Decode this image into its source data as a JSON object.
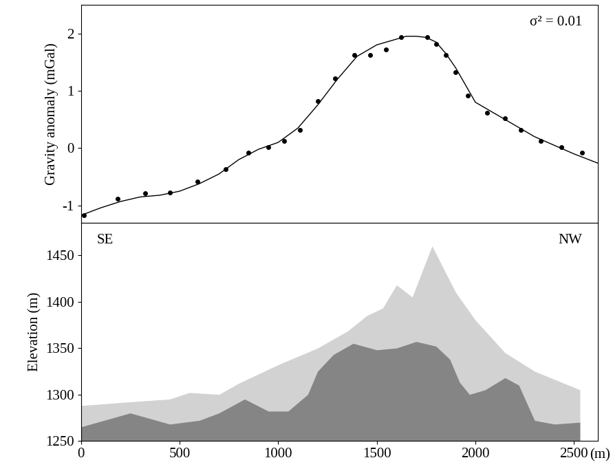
{
  "chart_data": [
    {
      "type": "line",
      "y_label": "Gravity anomaly (mGal)",
      "annotations": [
        "σ² = 0.01"
      ],
      "xlim": [
        0,
        2620
      ],
      "ylim": [
        -1.3,
        2.5
      ],
      "yticks": [
        -1,
        0,
        1,
        2
      ],
      "tick_labels": "y",
      "grid": false,
      "series": [
        {
          "type": "scatter",
          "color": "#000000",
          "marker": "o",
          "x": [
            15,
            185,
            325,
            450,
            590,
            735,
            850,
            950,
            1030,
            1110,
            1200,
            1290,
            1385,
            1465,
            1545,
            1625,
            1755,
            1800,
            1850,
            1900,
            1960,
            2060,
            2150,
            2230,
            2330,
            2435,
            2540
          ],
          "values": [
            -1.17,
            -0.88,
            -0.78,
            -0.77,
            -0.58,
            -0.37,
            -0.08,
            0.02,
            0.12,
            0.32,
            0.82,
            1.22,
            1.62,
            1.62,
            1.72,
            1.93,
            1.93,
            1.82,
            1.62,
            1.32,
            0.92,
            0.62,
            0.52,
            0.32,
            0.12,
            0.02,
            -0.08
          ]
        },
        {
          "type": "line",
          "color": "#000000",
          "line_style": "solid",
          "x": [
            0,
            100,
            200,
            300,
            400,
            500,
            600,
            700,
            800,
            900,
            1000,
            1100,
            1200,
            1300,
            1400,
            1500,
            1600,
            1650,
            1700,
            1750,
            1800,
            1850,
            1900,
            1950,
            2000,
            2100,
            2200,
            2300,
            2400,
            2500,
            2620
          ],
          "values": [
            -1.17,
            -1.04,
            -0.93,
            -0.85,
            -0.82,
            -0.75,
            -0.62,
            -0.45,
            -0.2,
            -0.02,
            0.1,
            0.35,
            0.75,
            1.2,
            1.6,
            1.8,
            1.9,
            1.95,
            1.95,
            1.93,
            1.85,
            1.65,
            1.4,
            1.1,
            0.8,
            0.6,
            0.4,
            0.2,
            0.05,
            -0.1,
            -0.26
          ]
        }
      ]
    },
    {
      "type": "area",
      "y_label": "Elevation (m)",
      "x_label": "(m)",
      "annotations": [
        "SE",
        "NW"
      ],
      "xlim": [
        0,
        2620
      ],
      "xticks": [
        0,
        500,
        1000,
        1500,
        2000,
        2500
      ],
      "ylim": [
        1250,
        1485
      ],
      "yticks": [
        1250,
        1300,
        1350,
        1400,
        1450
      ],
      "grid": false,
      "series": [
        {
          "color": "#d2d2d2",
          "x": [
            0,
            250,
            450,
            550,
            700,
            800,
            1000,
            1200,
            1350,
            1450,
            1530,
            1600,
            1680,
            1780,
            1900,
            2000,
            2150,
            2300,
            2530
          ],
          "values": [
            1288,
            1292,
            1295,
            1302,
            1300,
            1312,
            1332,
            1350,
            1368,
            1385,
            1393,
            1418,
            1405,
            1460,
            1410,
            1380,
            1345,
            1325,
            1305
          ]
        },
        {
          "color": "#858585",
          "x": [
            0,
            250,
            450,
            600,
            700,
            830,
            950,
            1050,
            1150,
            1200,
            1280,
            1380,
            1500,
            1600,
            1700,
            1800,
            1870,
            1920,
            1970,
            2050,
            2150,
            2220,
            2300,
            2400,
            2530
          ],
          "values": [
            1265,
            1280,
            1268,
            1272,
            1280,
            1295,
            1282,
            1282,
            1300,
            1325,
            1343,
            1355,
            1348,
            1350,
            1357,
            1352,
            1338,
            1313,
            1300,
            1305,
            1318,
            1310,
            1272,
            1268,
            1270
          ]
        }
      ]
    }
  ]
}
